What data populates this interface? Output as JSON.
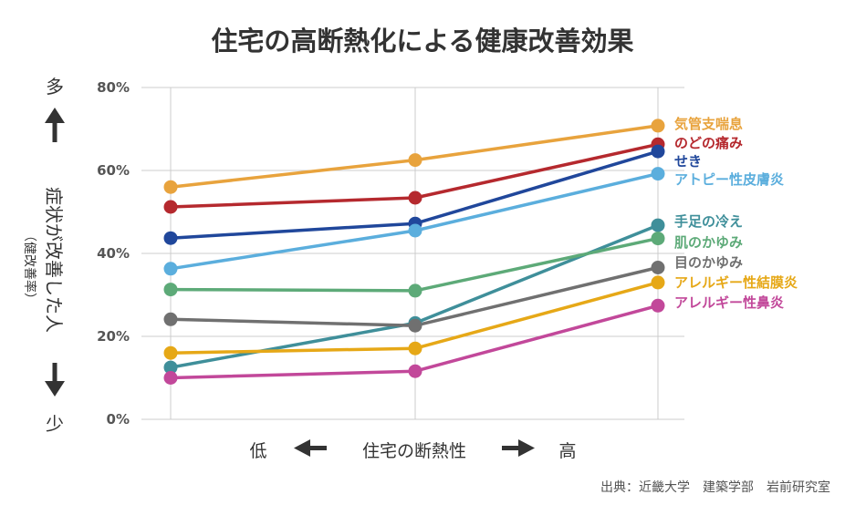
{
  "chart_data": {
    "type": "line",
    "title": "住宅の高断熱化による健康改善効果",
    "x": [
      "",
      "",
      ""
    ],
    "xlabel": {
      "low": "低",
      "middle": "住宅の断熱性",
      "high": "高"
    },
    "ylabel": {
      "top": "多",
      "main": "症状が改善した人",
      "sub": "（健改善率）",
      "bottom": "少"
    },
    "yticks": [
      "0%",
      "20%",
      "40%",
      "60%",
      "80%"
    ],
    "ylim": [
      0,
      80
    ],
    "grid": true,
    "legend_position": "right",
    "source": "出典：近畿大学　建築学部　岩前研究室",
    "series": [
      {
        "name": "気管支喘息",
        "color": "#E8A33D",
        "values": [
          56,
          62.5,
          70.8
        ]
      },
      {
        "name": "のどの痛み",
        "color": "#B5292E",
        "values": [
          51.2,
          53.4,
          66.3
        ]
      },
      {
        "name": "せき",
        "color": "#20479B",
        "values": [
          43.7,
          47.2,
          64.6
        ]
      },
      {
        "name": "アトピー性皮膚炎",
        "color": "#5BAEDD",
        "values": [
          36.3,
          45.5,
          59.2
        ]
      },
      {
        "name": "手足の冷え",
        "color": "#3F8F9A",
        "values": [
          12.5,
          23.2,
          46.8
        ]
      },
      {
        "name": "肌のかゆみ",
        "color": "#5DAA78",
        "values": [
          31.3,
          31,
          43.6
        ]
      },
      {
        "name": "目のかゆみ",
        "color": "#707070",
        "values": [
          24.1,
          22.6,
          36.6
        ]
      },
      {
        "name": "アレルギー性結膜炎",
        "color": "#E6A817",
        "values": [
          16,
          17.1,
          33
        ]
      },
      {
        "name": "アレルギー性鼻炎",
        "color": "#C2489A",
        "values": [
          10,
          11.6,
          27.4
        ]
      }
    ]
  }
}
